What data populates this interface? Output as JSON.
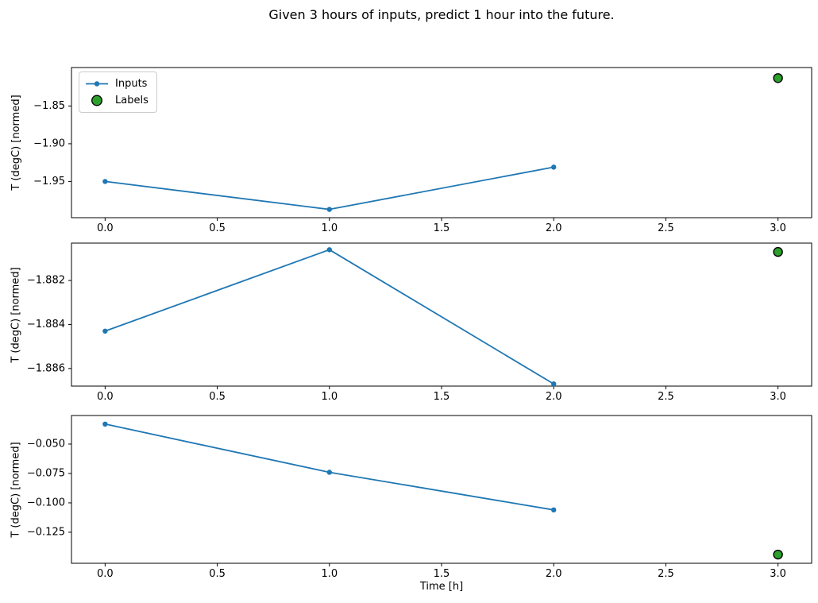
{
  "figure": {
    "title": "Given 3 hours of inputs, predict 1 hour into the future.",
    "xlabel": "Time [h]",
    "background": "#ffffff",
    "legend": {
      "position": "upper left",
      "inputs_label": "Inputs",
      "labels_label": "Labels"
    }
  },
  "colors": {
    "inputs_line": "#1f77b4",
    "labels_fill": "#2ca02c",
    "labels_edge": "#000000",
    "axis": "#000000",
    "legend_border": "#cccccc"
  },
  "chart_data": [
    {
      "type": "line",
      "ylabel": "T (degC) [normed]",
      "x": [
        0,
        1,
        2
      ],
      "series": [
        {
          "name": "Inputs",
          "values": [
            -1.95,
            -1.987,
            -1.931
          ]
        }
      ],
      "label_point": {
        "name": "Labels",
        "x": 3,
        "y": -1.813
      },
      "xticks": [
        0.0,
        0.5,
        1.0,
        1.5,
        2.0,
        2.5,
        3.0
      ],
      "xtick_labels": [
        "0.0",
        "0.5",
        "1.0",
        "1.5",
        "2.0",
        "2.5",
        "3.0"
      ],
      "yticks": [
        -1.85,
        -1.9,
        -1.95
      ],
      "ytick_labels": [
        "−1.85",
        "−1.90",
        "−1.95"
      ],
      "xlim": [
        -0.15,
        3.15
      ],
      "ylim": [
        -1.998,
        -1.799
      ],
      "grid": false,
      "legend_visible": true
    },
    {
      "type": "line",
      "ylabel": "T (degC) [normed]",
      "x": [
        0,
        1,
        2
      ],
      "series": [
        {
          "name": "Inputs",
          "values": [
            -1.8843,
            -1.8806,
            -1.8867
          ]
        }
      ],
      "label_point": {
        "name": "Labels",
        "x": 3,
        "y": -1.8807
      },
      "xticks": [
        0.0,
        0.5,
        1.0,
        1.5,
        2.0,
        2.5,
        3.0
      ],
      "xtick_labels": [
        "0.0",
        "0.5",
        "1.0",
        "1.5",
        "2.0",
        "2.5",
        "3.0"
      ],
      "yticks": [
        -1.882,
        -1.884,
        -1.886
      ],
      "ytick_labels": [
        "−1.882",
        "−1.884",
        "−1.886"
      ],
      "xlim": [
        -0.15,
        3.15
      ],
      "ylim": [
        -1.8868,
        -1.8803
      ],
      "grid": false,
      "legend_visible": false
    },
    {
      "type": "line",
      "ylabel": "T (degC) [normed]",
      "x": [
        0,
        1,
        2
      ],
      "series": [
        {
          "name": "Inputs",
          "values": [
            -0.033,
            -0.074,
            -0.106
          ]
        }
      ],
      "label_point": {
        "name": "Labels",
        "x": 3,
        "y": -0.144
      },
      "xticks": [
        0.0,
        0.5,
        1.0,
        1.5,
        2.0,
        2.5,
        3.0
      ],
      "xtick_labels": [
        "0.0",
        "0.5",
        "1.0",
        "1.5",
        "2.0",
        "2.5",
        "3.0"
      ],
      "yticks": [
        -0.05,
        -0.075,
        -0.1,
        -0.125
      ],
      "ytick_labels": [
        "−0.050",
        "−0.075",
        "−0.100",
        "−0.125"
      ],
      "xlim": [
        -0.15,
        3.15
      ],
      "ylim": [
        -0.1514,
        -0.0257
      ],
      "grid": false,
      "legend_visible": false
    }
  ]
}
